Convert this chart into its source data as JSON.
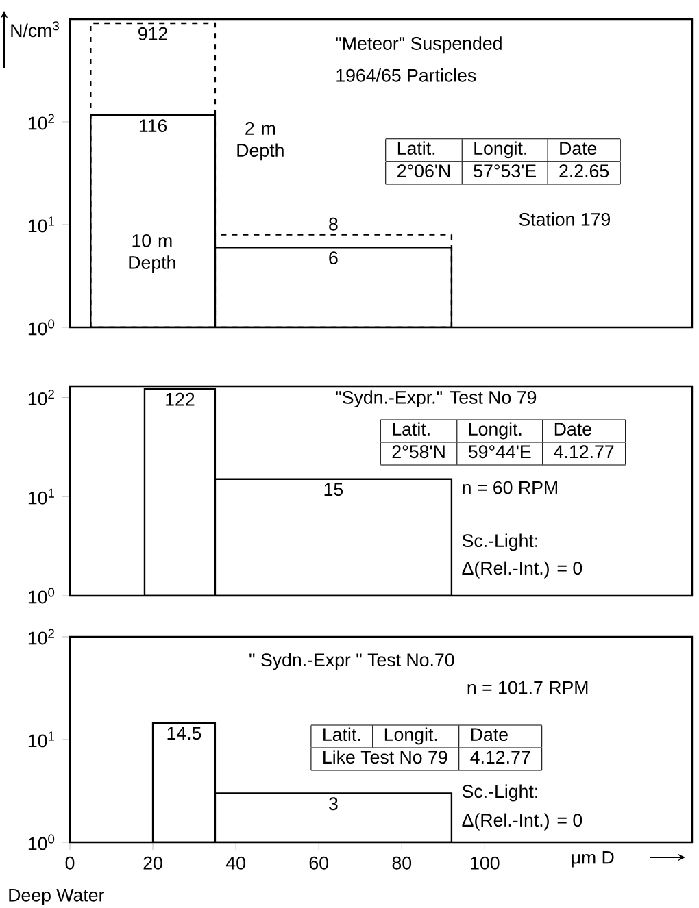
{
  "chart_data": [
    {
      "type": "histogram",
      "bins": [
        5,
        35,
        92
      ],
      "log": true,
      "data_labels": true,
      "tick_labels": "y",
      "ylabel": "N/cm$^{3}$",
      "xlim": [
        0,
        150
      ],
      "ylim": [
        1,
        1000
      ],
      "yticks": [
        {
          "value": 1,
          "label": "10$^{0}$"
        },
        {
          "value": 10,
          "label": "10$^{1}$"
        },
        {
          "value": 100,
          "label": "10$^{2}$"
        }
      ],
      "series": [
        {
          "name": "10 m Depth",
          "color": "#000000",
          "line_style": "solid",
          "values": [
            116,
            6
          ]
        },
        {
          "name": "2 m Depth",
          "color": "#000000",
          "line_style": "dashed",
          "values": [
            912,
            8
          ]
        }
      ],
      "annotations": [
        "\"Meteor\"  Suspended",
        "1964/65  Particles",
        "Latit.",
        "Longit.",
        "Date",
        "2°06'N",
        "57°53'E",
        "2.2.65",
        "Station 179"
      ]
    },
    {
      "type": "histogram",
      "bins": [
        18,
        35,
        92
      ],
      "log": true,
      "data_labels": true,
      "tick_labels": "y",
      "xlim": [
        0,
        150
      ],
      "ylim": [
        1,
        130
      ],
      "yticks": [
        {
          "value": 1,
          "label": "10$^{0}$"
        },
        {
          "value": 10,
          "label": "10$^{1}$"
        },
        {
          "value": 100,
          "label": "10$^{2}$"
        }
      ],
      "color": "#000000",
      "values": [
        122,
        15
      ],
      "annotations": [
        "\"Sydn.-Expr.\"   Test No 79",
        "Latit.",
        "Longit.",
        "Date",
        "2°58'N",
        "59°44'E",
        "4.12.77",
        "n = 60 RPM",
        "Sc.-Light:",
        "Δ(Rel.-Int.) = 0"
      ]
    },
    {
      "type": "histogram",
      "bins": [
        20,
        35,
        92
      ],
      "log": true,
      "data_labels": true,
      "xlabel": "μm D",
      "xlim": [
        0,
        150
      ],
      "ylim": [
        1,
        100
      ],
      "xticks": [
        0,
        20,
        40,
        60,
        80,
        100
      ],
      "yticks": [
        {
          "value": 1,
          "label": "10$^{0}$"
        },
        {
          "value": 10,
          "label": "10$^{1}$"
        },
        {
          "value": 100,
          "label": "10$^{2}$"
        }
      ],
      "color": "#000000",
      "values": [
        14.5,
        3
      ],
      "annotations": [
        "\" Sydn.-Expr \"     Test No.70",
        "n = 101.7 RPM",
        "Latit.",
        "Longit.",
        "Date",
        "Like Test No 79",
        "4.12.77",
        "Sc.-Light:",
        "Δ(Rel.-Int.) = 0",
        "Deep Water"
      ]
    }
  ]
}
